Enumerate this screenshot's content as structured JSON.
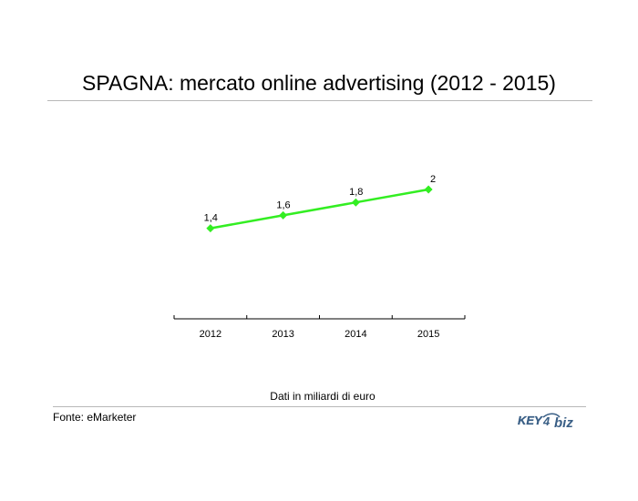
{
  "header": {
    "title": "SPAGNA: mercato online advertising (2012 - 2015)"
  },
  "footer": {
    "note": "Dati in miliardi di euro",
    "source": "Fonte: eMarketer",
    "logo_text": "KEY4biz"
  },
  "colors": {
    "series": "#33ee22",
    "axis": "#000000",
    "rule": "#b8b8b8",
    "logo": "#3a5f86"
  },
  "chart_data": {
    "type": "line",
    "title": "SPAGNA: mercato online advertising (2012 - 2015)",
    "categories": [
      "2012",
      "2013",
      "2014",
      "2015"
    ],
    "series": [
      {
        "values": [
          1.4,
          1.6,
          1.8,
          2
        ],
        "labels": [
          "1,4",
          "1,6",
          "1,8",
          "2"
        ]
      }
    ],
    "xlabel": "",
    "ylabel": "",
    "grid": false,
    "legend": "none"
  }
}
